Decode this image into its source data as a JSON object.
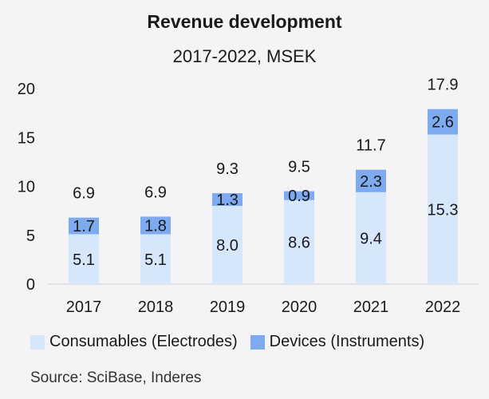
{
  "chart_data": {
    "type": "bar",
    "stacked": true,
    "title": "Revenue development",
    "subtitle": "2017-2022, MSEK",
    "categories": [
      "2017",
      "2018",
      "2019",
      "2020",
      "2021",
      "2022"
    ],
    "series": [
      {
        "name": "Consumables (Electrodes)",
        "values": [
          5.1,
          5.1,
          8.0,
          8.6,
          9.4,
          15.3
        ],
        "labels": [
          "5.1",
          "5.1",
          "8.0",
          "8.6",
          "9.4",
          "15.3"
        ],
        "color": "#d6e6fb"
      },
      {
        "name": "Devices (Instruments)",
        "values": [
          1.7,
          1.8,
          1.3,
          0.9,
          2.3,
          2.6
        ],
        "labels": [
          "1.7",
          "1.8",
          "1.3",
          "0.9",
          "2.3",
          "2.6"
        ],
        "color": "#7eaaf0"
      }
    ],
    "totals": [
      "6.9",
      "6.9",
      "9.3",
      "9.5",
      "11.7",
      "17.9"
    ],
    "yticks": [
      "0",
      "5",
      "10",
      "15",
      "20"
    ],
    "ylim": [
      0,
      20
    ],
    "xlabel": "",
    "ylabel": "",
    "legend_position": "bottom-left",
    "grid": false
  },
  "source": "Source: SciBase, Inderes"
}
